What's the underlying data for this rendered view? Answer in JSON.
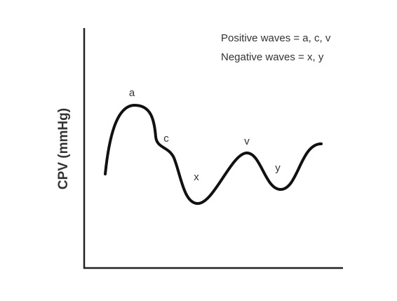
{
  "axis": {
    "y_label": "CPV (mmHg)"
  },
  "legend": {
    "lines": [
      "Positive waves = a, c, v",
      "Negative waves = x, y"
    ]
  },
  "wave_labels": [
    "a",
    "c",
    "x",
    "v",
    "y"
  ]
}
